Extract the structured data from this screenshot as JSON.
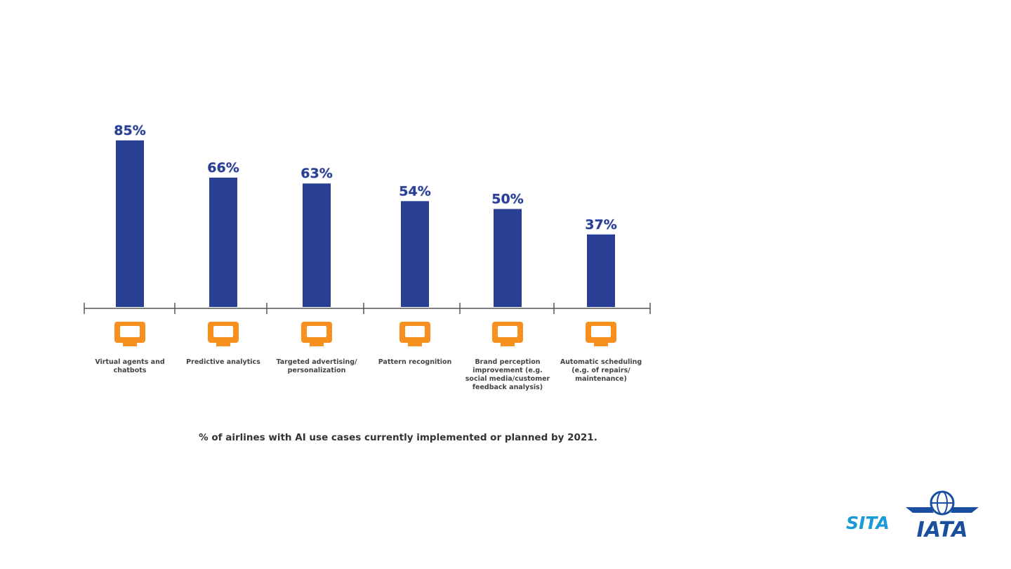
{
  "chart_data": {
    "type": "bar",
    "categories": [
      "Virtual agents and chatbots",
      "Predictive analytics",
      "Targeted advertising/ personalization",
      "Pattern recognition",
      "Brand perception improvement (e.g. social media/customer feedback analysis)",
      "Automatic scheduling (e.g. of repairs/ maintenance)"
    ],
    "values": [
      85,
      66,
      63,
      54,
      50,
      37
    ],
    "value_labels": [
      "85%",
      "66%",
      "63%",
      "54%",
      "50%",
      "37%"
    ],
    "color": "#283f93",
    "caption": "% of airlines with AI use cases currently implemented or planned by 2021."
  },
  "logos": [
    "SITA",
    "IATA"
  ]
}
